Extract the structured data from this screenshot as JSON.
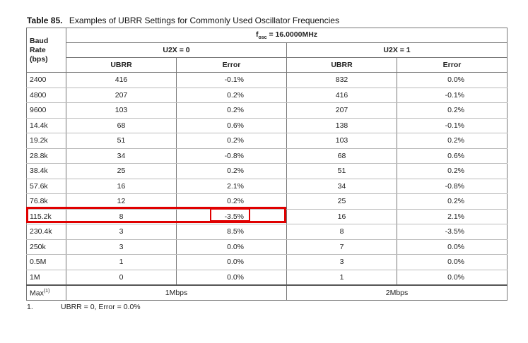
{
  "caption": {
    "number": "Table 85.",
    "title": "Examples of UBRR Settings for Commonly Used Oscillator Frequencies"
  },
  "table": {
    "fosc_prefix": "f",
    "fosc_sub": "osc",
    "fosc_value": " = 16.0000MHz",
    "baud_header": [
      "Baud",
      "Rate",
      "(bps)"
    ],
    "u2x0_label": "U2X = 0",
    "u2x1_label": "U2X = 1",
    "col_ubrr": "UBRR",
    "col_error": "Error",
    "rows": [
      {
        "baud": "2400",
        "ubrr0": "416",
        "err0": "-0.1%",
        "ubrr1": "832",
        "err1": "0.0%"
      },
      {
        "baud": "4800",
        "ubrr0": "207",
        "err0": "0.2%",
        "ubrr1": "416",
        "err1": "-0.1%"
      },
      {
        "baud": "9600",
        "ubrr0": "103",
        "err0": "0.2%",
        "ubrr1": "207",
        "err1": "0.2%"
      },
      {
        "baud": "14.4k",
        "ubrr0": "68",
        "err0": "0.6%",
        "ubrr1": "138",
        "err1": "-0.1%"
      },
      {
        "baud": "19.2k",
        "ubrr0": "51",
        "err0": "0.2%",
        "ubrr1": "103",
        "err1": "0.2%"
      },
      {
        "baud": "28.8k",
        "ubrr0": "34",
        "err0": "-0.8%",
        "ubrr1": "68",
        "err1": "0.6%"
      },
      {
        "baud": "38.4k",
        "ubrr0": "25",
        "err0": "0.2%",
        "ubrr1": "51",
        "err1": "0.2%"
      },
      {
        "baud": "57.6k",
        "ubrr0": "16",
        "err0": "2.1%",
        "ubrr1": "34",
        "err1": "-0.8%"
      },
      {
        "baud": "76.8k",
        "ubrr0": "12",
        "err0": "0.2%",
        "ubrr1": "25",
        "err1": "0.2%"
      },
      {
        "baud": "115.2k",
        "ubrr0": "8",
        "err0": "-3.5%",
        "ubrr1": "16",
        "err1": "2.1%"
      },
      {
        "baud": "230.4k",
        "ubrr0": "3",
        "err0": "8.5%",
        "ubrr1": "8",
        "err1": "-3.5%"
      },
      {
        "baud": "250k",
        "ubrr0": "3",
        "err0": "0.0%",
        "ubrr1": "7",
        "err1": "0.0%"
      },
      {
        "baud": "0.5M",
        "ubrr0": "1",
        "err0": "0.0%",
        "ubrr1": "3",
        "err1": "0.0%"
      },
      {
        "baud": "1M",
        "ubrr0": "0",
        "err0": "0.0%",
        "ubrr1": "1",
        "err1": "0.0%"
      }
    ],
    "max_label": "Max",
    "max_sup": "(1)",
    "max_u2x0": "1Mbps",
    "max_u2x1": "2Mbps"
  },
  "highlight_color": "#e00000",
  "footnote": {
    "number": "1.",
    "text": "UBRR = 0, Error = 0.0%"
  }
}
